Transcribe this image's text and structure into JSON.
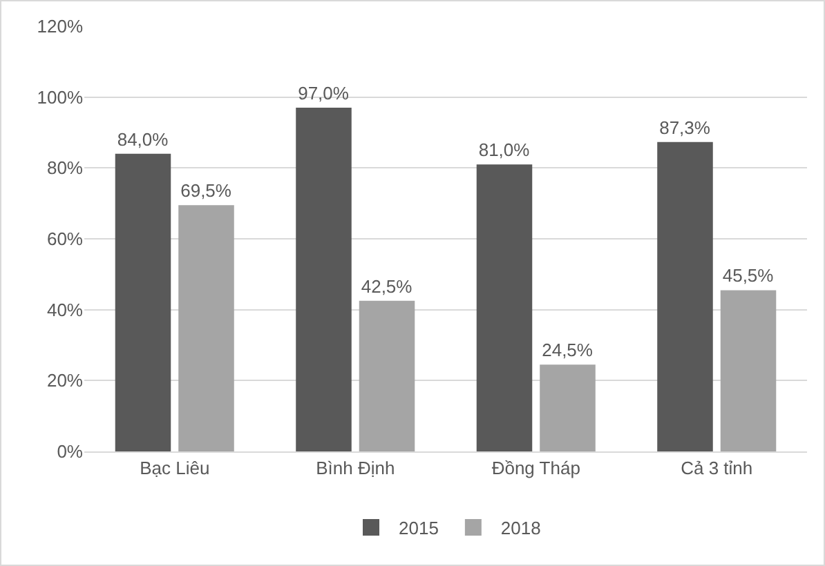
{
  "chart_data": {
    "type": "bar",
    "categories": [
      "Bạc Liêu",
      "Bình Định",
      "Đồng Tháp",
      "Cả 3 tỉnh"
    ],
    "series": [
      {
        "name": "2015",
        "color": "#595959",
        "values": [
          84.0,
          97.0,
          81.0,
          87.3
        ],
        "value_labels": [
          "84,0%",
          "97,0%",
          "81,0%",
          "87,3%"
        ]
      },
      {
        "name": "2018",
        "color": "#a5a5a5",
        "values": [
          69.5,
          42.5,
          24.5,
          45.5
        ],
        "value_labels": [
          "69,5%",
          "42,5%",
          "24,5%",
          "45,5%"
        ]
      }
    ],
    "ylim": [
      0,
      120
    ],
    "yticks": [
      {
        "value": 0,
        "label": "0%"
      },
      {
        "value": 20,
        "label": "20%"
      },
      {
        "value": 40,
        "label": "40%"
      },
      {
        "value": 60,
        "label": "60%"
      },
      {
        "value": 80,
        "label": "80%"
      },
      {
        "value": 100,
        "label": "100%"
      },
      {
        "value": 120,
        "label": "120%"
      }
    ],
    "grid": "y",
    "legend": "bottom"
  }
}
